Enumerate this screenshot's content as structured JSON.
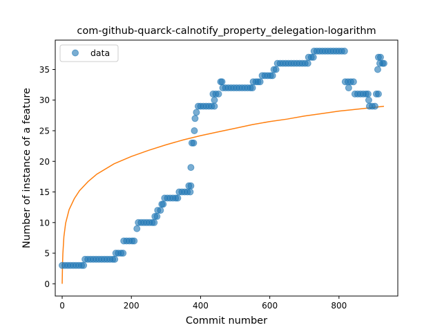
{
  "chart_data": {
    "type": "scatter",
    "title": "com-github-quarck-calnotify_property_delegation-logarithm",
    "xlabel": "Commit number",
    "ylabel": "Number of instance of a feature",
    "xlim": [
      -20,
      970
    ],
    "ylim": [
      -2,
      39.8
    ],
    "xticks": [
      0,
      200,
      400,
      600,
      800
    ],
    "yticks": [
      0,
      5,
      10,
      15,
      20,
      25,
      30,
      35
    ],
    "grid": false,
    "legend": {
      "position": "top-left",
      "entries": [
        "data"
      ]
    },
    "colors": {
      "data": "#1f77b4",
      "fit": "#ff7f0e"
    },
    "series": [
      {
        "name": "data",
        "kind": "scatter",
        "points": [
          [
            0,
            3
          ],
          [
            8,
            3
          ],
          [
            16,
            3
          ],
          [
            24,
            3
          ],
          [
            32,
            3
          ],
          [
            40,
            3
          ],
          [
            48,
            3
          ],
          [
            56,
            3
          ],
          [
            62,
            3
          ],
          [
            66,
            4
          ],
          [
            74,
            4
          ],
          [
            82,
            4
          ],
          [
            90,
            4
          ],
          [
            98,
            4
          ],
          [
            106,
            4
          ],
          [
            114,
            4
          ],
          [
            122,
            4
          ],
          [
            130,
            4
          ],
          [
            138,
            4
          ],
          [
            146,
            4
          ],
          [
            152,
            4
          ],
          [
            155,
            5
          ],
          [
            162,
            5
          ],
          [
            170,
            5
          ],
          [
            176,
            5
          ],
          [
            178,
            7
          ],
          [
            186,
            7
          ],
          [
            194,
            7
          ],
          [
            202,
            7
          ],
          [
            208,
            7
          ],
          [
            216,
            9
          ],
          [
            220,
            10
          ],
          [
            228,
            10
          ],
          [
            236,
            10
          ],
          [
            244,
            10
          ],
          [
            252,
            10
          ],
          [
            260,
            10
          ],
          [
            266,
            10
          ],
          [
            268,
            11
          ],
          [
            274,
            11
          ],
          [
            276,
            12
          ],
          [
            284,
            12
          ],
          [
            288,
            13
          ],
          [
            292,
            13
          ],
          [
            296,
            14
          ],
          [
            304,
            14
          ],
          [
            312,
            14
          ],
          [
            320,
            14
          ],
          [
            328,
            14
          ],
          [
            334,
            14
          ],
          [
            338,
            15
          ],
          [
            346,
            15
          ],
          [
            354,
            15
          ],
          [
            362,
            15
          ],
          [
            370,
            15
          ],
          [
            366,
            16
          ],
          [
            372,
            16
          ],
          [
            372,
            19
          ],
          [
            375,
            23
          ],
          [
            380,
            23
          ],
          [
            382,
            25
          ],
          [
            384,
            27
          ],
          [
            388,
            28
          ],
          [
            393,
            29
          ],
          [
            400,
            29
          ],
          [
            408,
            29
          ],
          [
            416,
            29
          ],
          [
            424,
            29
          ],
          [
            432,
            29
          ],
          [
            440,
            29
          ],
          [
            440,
            30
          ],
          [
            436,
            31
          ],
          [
            444,
            31
          ],
          [
            452,
            31
          ],
          [
            458,
            33
          ],
          [
            462,
            33
          ],
          [
            464,
            32
          ],
          [
            472,
            32
          ],
          [
            480,
            32
          ],
          [
            488,
            32
          ],
          [
            496,
            32
          ],
          [
            504,
            32
          ],
          [
            512,
            32
          ],
          [
            520,
            32
          ],
          [
            528,
            32
          ],
          [
            536,
            32
          ],
          [
            544,
            32
          ],
          [
            550,
            32
          ],
          [
            552,
            33
          ],
          [
            560,
            33
          ],
          [
            566,
            33
          ],
          [
            572,
            33
          ],
          [
            578,
            34
          ],
          [
            586,
            34
          ],
          [
            594,
            34
          ],
          [
            602,
            34
          ],
          [
            608,
            34
          ],
          [
            612,
            35
          ],
          [
            618,
            35
          ],
          [
            622,
            36
          ],
          [
            630,
            36
          ],
          [
            638,
            36
          ],
          [
            646,
            36
          ],
          [
            654,
            36
          ],
          [
            662,
            36
          ],
          [
            670,
            36
          ],
          [
            678,
            36
          ],
          [
            686,
            36
          ],
          [
            694,
            36
          ],
          [
            702,
            36
          ],
          [
            710,
            36
          ],
          [
            712,
            37
          ],
          [
            720,
            37
          ],
          [
            726,
            37
          ],
          [
            728,
            38
          ],
          [
            736,
            38
          ],
          [
            744,
            38
          ],
          [
            752,
            38
          ],
          [
            760,
            38
          ],
          [
            768,
            38
          ],
          [
            776,
            38
          ],
          [
            784,
            38
          ],
          [
            792,
            38
          ],
          [
            800,
            38
          ],
          [
            808,
            38
          ],
          [
            816,
            38
          ],
          [
            818,
            33
          ],
          [
            826,
            33
          ],
          [
            834,
            33
          ],
          [
            842,
            33
          ],
          [
            828,
            32
          ],
          [
            846,
            31
          ],
          [
            854,
            31
          ],
          [
            862,
            31
          ],
          [
            870,
            31
          ],
          [
            878,
            31
          ],
          [
            884,
            31
          ],
          [
            886,
            30
          ],
          [
            888,
            29
          ],
          [
            896,
            29
          ],
          [
            904,
            29
          ],
          [
            908,
            31
          ],
          [
            914,
            31
          ],
          [
            912,
            35
          ],
          [
            914,
            37
          ],
          [
            920,
            37
          ],
          [
            918,
            36
          ],
          [
            926,
            36
          ],
          [
            930,
            36
          ]
        ]
      },
      {
        "name": "",
        "kind": "line",
        "function": "logarithmic fit",
        "points": [
          [
            0,
            0
          ],
          [
            1,
            3.1
          ],
          [
            2,
            4.9
          ],
          [
            5,
            7.7
          ],
          [
            10,
            9.9
          ],
          [
            20,
            12.1
          ],
          [
            35,
            13.9
          ],
          [
            50,
            15.2
          ],
          [
            75,
            16.7
          ],
          [
            100,
            17.9
          ],
          [
            150,
            19.6
          ],
          [
            200,
            20.8
          ],
          [
            250,
            21.8
          ],
          [
            300,
            22.7
          ],
          [
            350,
            23.5
          ],
          [
            400,
            24.2
          ],
          [
            450,
            24.8
          ],
          [
            500,
            25.4
          ],
          [
            550,
            26.0
          ],
          [
            600,
            26.5
          ],
          [
            650,
            26.9
          ],
          [
            700,
            27.4
          ],
          [
            750,
            27.8
          ],
          [
            800,
            28.2
          ],
          [
            850,
            28.5
          ],
          [
            900,
            28.8
          ],
          [
            930,
            29.0
          ]
        ]
      }
    ]
  }
}
